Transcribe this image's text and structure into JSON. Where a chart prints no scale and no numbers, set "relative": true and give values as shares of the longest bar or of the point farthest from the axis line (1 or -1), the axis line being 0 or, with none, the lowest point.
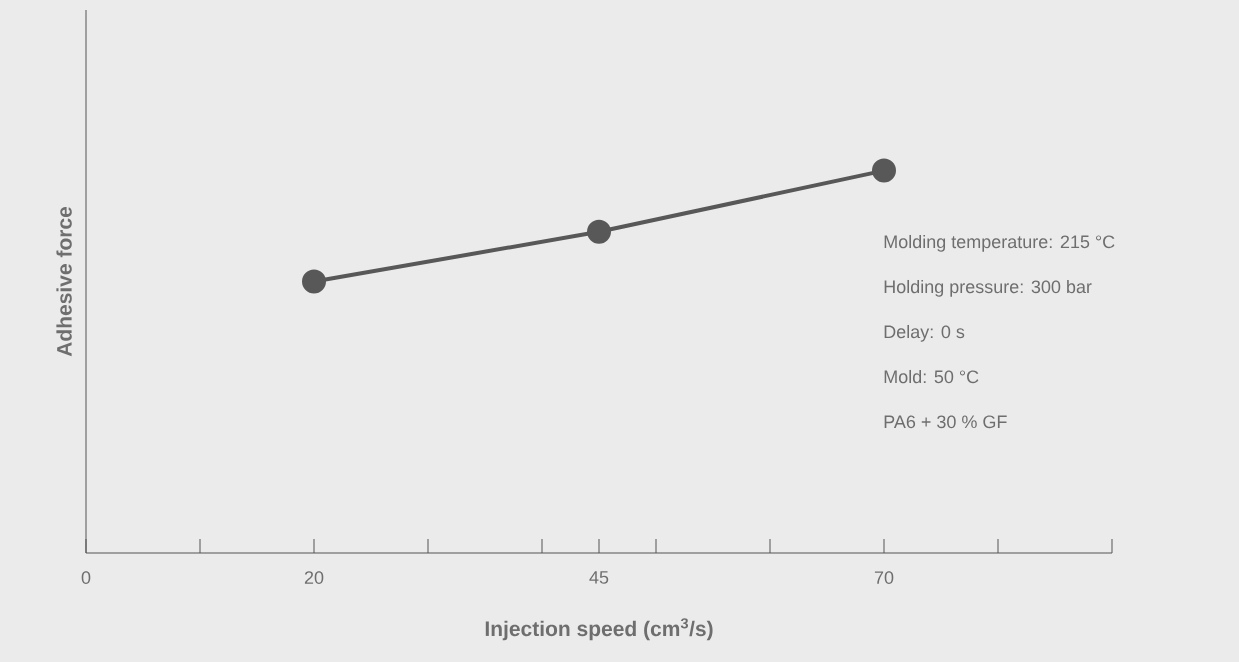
{
  "chart_data": {
    "type": "line",
    "xlabel": "Injection speed (cm$^{3}$/s)",
    "ylabel": "Adhesive force",
    "x": [
      20,
      45,
      70
    ],
    "relative": true,
    "series": [
      {
        "color": "#585858",
        "values": [
          0.71,
          0.84,
          1
        ]
      }
    ],
    "xlim": [
      0,
      90
    ],
    "xticks": [
      0,
      {
        "value": 10,
        "label": null
      },
      20,
      {
        "value": 30,
        "label": null
      },
      {
        "value": 40,
        "label": null
      },
      45,
      {
        "value": 50,
        "label": null
      },
      {
        "value": 60,
        "label": null
      },
      70,
      {
        "value": 80,
        "label": null
      },
      {
        "value": 90,
        "label": null
      }
    ],
    "marker": "circle",
    "line_style": "solid",
    "annotations": [
      "Molding temperature: 215 °C",
      "Holding pressure: 300 bar",
      "Delay: 0 s",
      "Mold: 50 °C",
      "PA6 + 30 % GF"
    ]
  }
}
